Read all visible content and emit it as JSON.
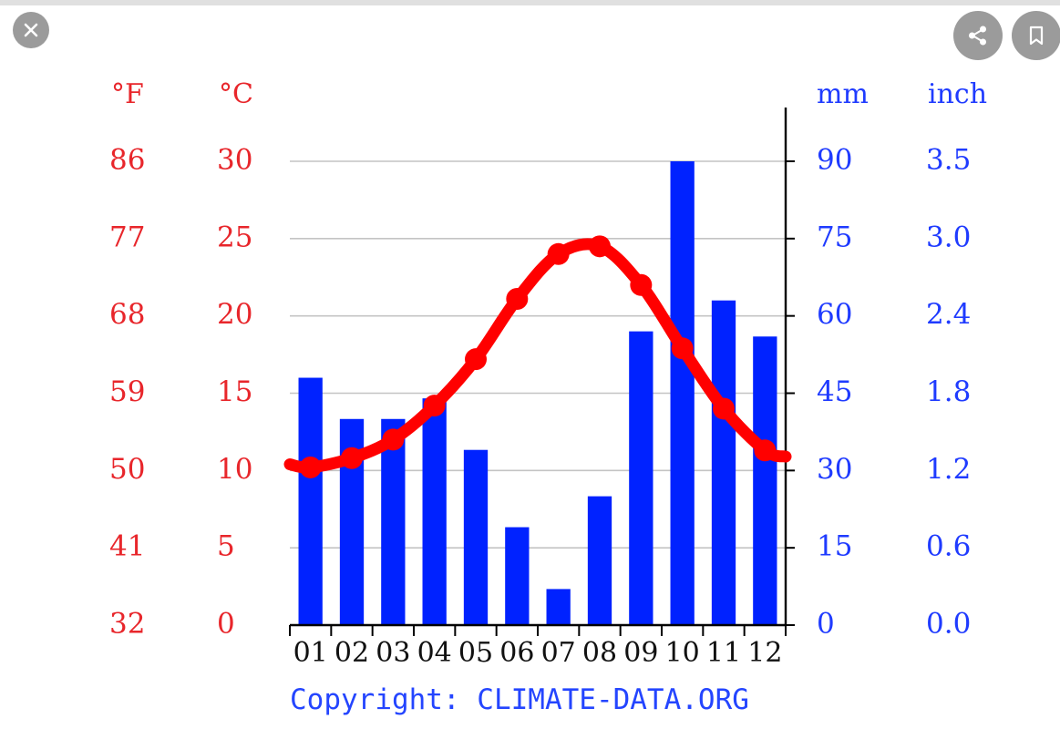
{
  "toolbar": {
    "close_icon": "close-icon",
    "share_icon": "share-icon",
    "bookmark_icon": "bookmark-icon"
  },
  "chart_data": {
    "type": "bar",
    "categories": [
      "01",
      "02",
      "03",
      "04",
      "05",
      "06",
      "07",
      "08",
      "09",
      "10",
      "11",
      "12"
    ],
    "series": [
      {
        "axis": "precipitation",
        "type": "bar",
        "color": "#0022ff",
        "values": [
          48,
          40,
          40,
          44,
          34,
          19,
          7,
          25,
          57,
          90,
          63,
          56
        ]
      },
      {
        "axis": "temperature",
        "type": "line",
        "color": "#ff0000",
        "values": [
          10.2,
          10.8,
          12.0,
          14.2,
          17.2,
          21.1,
          24.0,
          24.5,
          22.0,
          17.9,
          14.0,
          11.3
        ]
      }
    ],
    "left_axes": {
      "fahrenheit": {
        "unit": "°F",
        "ticks": [
          "86",
          "77",
          "68",
          "59",
          "50",
          "41",
          "32"
        ]
      },
      "celsius": {
        "unit": "°C",
        "ticks": [
          "30",
          "25",
          "20",
          "15",
          "10",
          "5",
          "0"
        ]
      },
      "ylim": [
        0,
        30
      ]
    },
    "right_axes": {
      "mm": {
        "unit": "mm",
        "ticks": [
          "90",
          "75",
          "60",
          "45",
          "30",
          "15",
          "0"
        ]
      },
      "inch": {
        "unit": "inch",
        "ticks": [
          "3.5",
          "3.0",
          "2.4",
          "1.8",
          "1.2",
          "0.6",
          "0.0"
        ]
      },
      "ylim": [
        0,
        90
      ]
    },
    "grid": true,
    "copyright": "Copyright: CLIMATE-DATA.ORG",
    "colors": {
      "temperature": "#ff0000",
      "precipitation": "#0022ff",
      "axis_label_temp": "#e8262b",
      "axis_label_prec": "#1f3bff"
    }
  }
}
